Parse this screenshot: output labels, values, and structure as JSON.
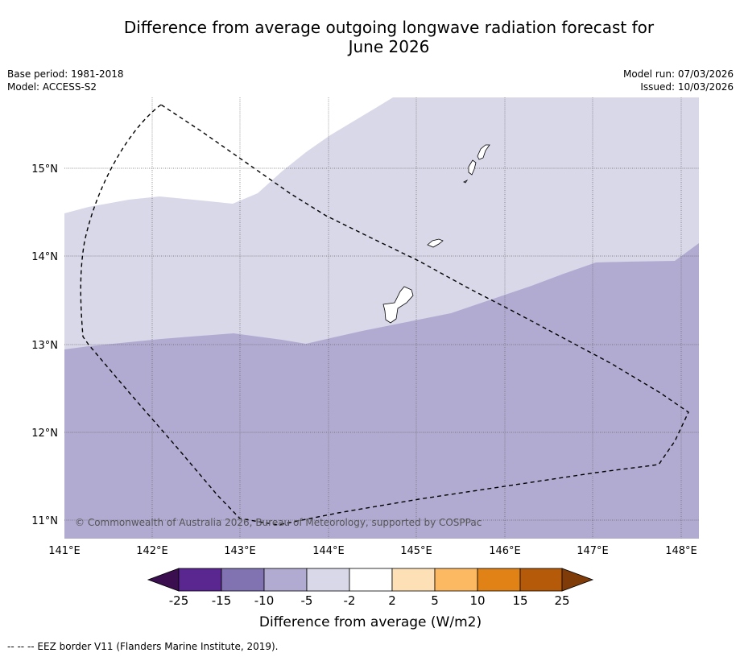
{
  "title": {
    "line1": "Difference from average outgoing longwave radiation forecast for",
    "line2": "June 2026"
  },
  "meta": {
    "base_period": "Base period: 1981-2018",
    "model": "Model: ACCESS-S2",
    "model_run": "Model run: 07/03/2026",
    "issued": "Issued: 10/03/2026"
  },
  "map": {
    "lon_labels": [
      "141°E",
      "142°E",
      "143°E",
      "144°E",
      "145°E",
      "146°E",
      "147°E",
      "148°E"
    ],
    "lat_labels": [
      "11°N",
      "12°N",
      "13°N",
      "14°N",
      "15°N"
    ],
    "copyright": "© Commonwealth of Australia 2026, Bureau of Meteorology, supported by COSPPac",
    "regions": [
      {
        "name": "region-minus-5-to-minus-2",
        "color": "#d8d8e9",
        "class": "-5 to -2"
      },
      {
        "name": "region-minus-10-to-minus-5",
        "color": "#b1abd2",
        "class": "-10 to -5"
      }
    ]
  },
  "legend": {
    "ticks": [
      "-25",
      "-15",
      "-10",
      "-5",
      "-2",
      "2",
      "5",
      "10",
      "15",
      "25"
    ],
    "colors": [
      "#5a2690",
      "#8173b1",
      "#b1abd2",
      "#d8d8e9",
      "#ffffff",
      "#fde0b6",
      "#fdb862",
      "#e08215",
      "#b45a08"
    ],
    "under_color": "#3b0f4f",
    "over_color": "#7f3b08",
    "label": "Difference from average (W/m2)"
  },
  "footer": "--  --  -- EEZ border V11 (Flanders Marine Institute, 2019)."
}
